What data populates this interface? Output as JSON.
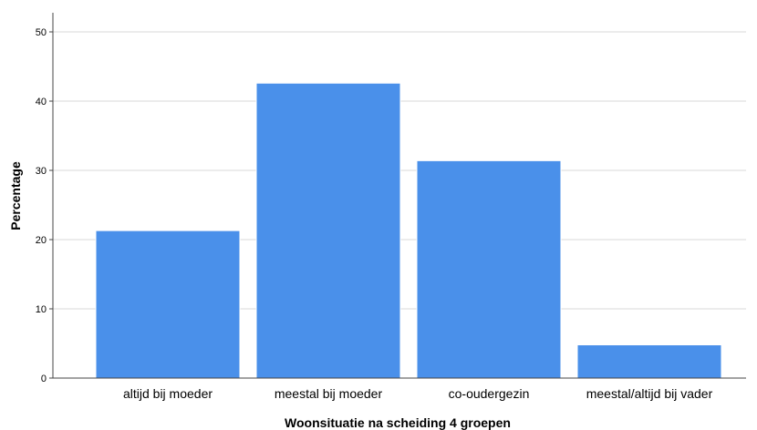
{
  "chart_data": {
    "type": "bar",
    "title": "",
    "xlabel": "Woonsituatie na scheiding 4 groepen",
    "ylabel": "Percentage",
    "categories": [
      "altijd bij moeder",
      "meestal bij moeder",
      "co-oudergezin",
      "meestal/altijd bij vader"
    ],
    "values": [
      21.3,
      42.6,
      31.4,
      4.8
    ],
    "ylim": [
      0,
      52
    ],
    "yticks": [
      "0",
      "10",
      "20",
      "30",
      "40",
      "50"
    ],
    "grid": true,
    "colors": {
      "bar": "#4A90EA",
      "grid": "#D9D9D9",
      "axis": "#444444"
    }
  }
}
